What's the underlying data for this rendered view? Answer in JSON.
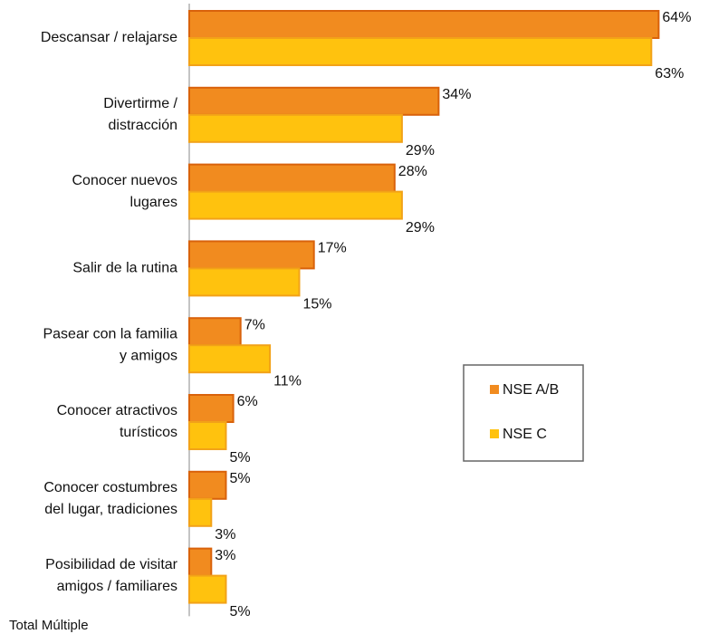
{
  "colors": {
    "nse_ab_fill": "#F18B1F",
    "nse_ab_stroke": "#D9620B",
    "nse_c_fill": "#FFC20E",
    "nse_c_stroke": "#F2A218",
    "axis": "#888888",
    "legend_border": "#666666"
  },
  "footnote": "Total Múltiple",
  "chart_data": {
    "type": "bar",
    "orientation": "horizontal",
    "categories": [
      [
        "Descansar / relajarse"
      ],
      [
        "Divertirme /",
        "distracción"
      ],
      [
        "Conocer nuevos",
        "lugares"
      ],
      [
        "Salir de la rutina"
      ],
      [
        "Pasear con la familia",
        "y amigos"
      ],
      [
        "Conocer atractivos",
        "turísticos"
      ],
      [
        "Conocer costumbres",
        "del lugar, tradiciones"
      ],
      [
        "Posibilidad de visitar",
        "amigos / familiares"
      ]
    ],
    "series": [
      {
        "name": "NSE A/B",
        "values": [
          64,
          34,
          28,
          17,
          7,
          6,
          5,
          3
        ],
        "labels": [
          "64%",
          "34%",
          "28%",
          "17%",
          "7%",
          "6%",
          "5%",
          "3%"
        ]
      },
      {
        "name": "NSE C",
        "values": [
          63,
          29,
          29,
          15,
          11,
          5,
          3,
          5
        ],
        "labels": [
          "63%",
          "29%",
          "29%",
          "15%",
          "11%",
          "5%",
          "3%",
          "5%"
        ]
      }
    ],
    "xlim": [
      0,
      100
    ],
    "grid": false,
    "legend_position": "right-middle"
  }
}
